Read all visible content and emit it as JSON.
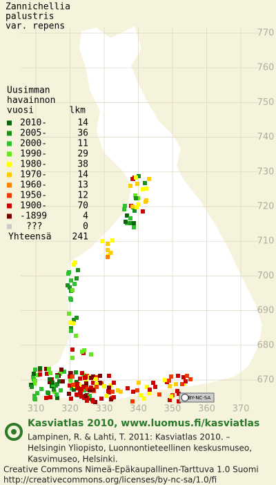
{
  "title": [
    "Zannichellia",
    "palustris",
    "var. repens"
  ],
  "legend": {
    "heading": [
      "Uusimman",
      "havainnon",
      "vuosi"
    ],
    "count_heading": "lkm",
    "items": [
      {
        "label": "2010-",
        "count": 14,
        "color": "#0b650b"
      },
      {
        "label": "2005-",
        "count": 36,
        "color": "#1d8f1d"
      },
      {
        "label": "2000-",
        "count": 11,
        "color": "#2fc02f"
      },
      {
        "label": "1990-",
        "count": 29,
        "color": "#66e61e"
      },
      {
        "label": "1980-",
        "count": 38,
        "color": "#ffff00"
      },
      {
        "label": "1970-",
        "count": 14,
        "color": "#ffcc00"
      },
      {
        "label": "1960-",
        "count": 13,
        "color": "#ff7f00"
      },
      {
        "label": "1950-",
        "count": 12,
        "color": "#ee3a00"
      },
      {
        "label": "1900-",
        "count": 70,
        "color": "#cc0000"
      },
      {
        "label": "-1899",
        "count": 4,
        "color": "#7a0000"
      },
      {
        "label": "???",
        "count": 0,
        "color": "#c8c8c8"
      }
    ],
    "total_label": "Yhteensä",
    "total": 241
  },
  "map": {
    "xticks": [
      310,
      320,
      330,
      340,
      350,
      360,
      370
    ],
    "yticks": [
      670,
      680,
      690,
      700,
      710,
      720,
      730,
      740,
      750,
      760,
      770
    ]
  },
  "badge": "BY-NC-SA",
  "footer": {
    "headline": "Kasviatlas 2010, www.luomus.fi/kasviatlas",
    "citation": [
      "Lampinen, R. & Lahti, T. 2011: Kasviatlas 2010. –",
      "Helsingin Yliopisto, Luonnontieteellinen keskusmuseo,",
      "Kasvimuseo, Helsinki."
    ],
    "license": [
      "Creative Commons Nimeä-Epäkaupallinen-Tarttuva 1.0 Suomi",
      "http://creativecommons.org/licenses/by-nc-sa/1.0/fi"
    ]
  }
}
